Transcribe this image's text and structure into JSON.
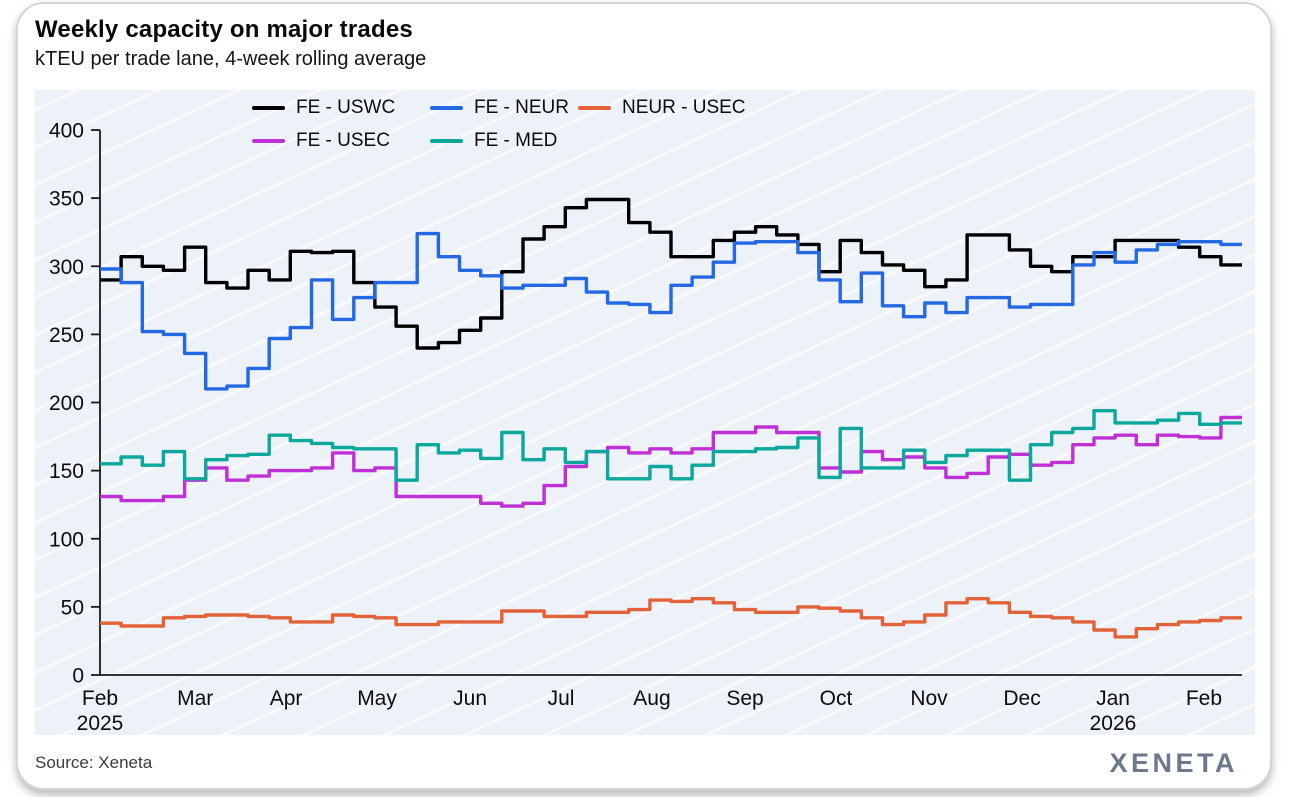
{
  "header": {
    "title": "Weekly capacity on major trades",
    "subtitle": "kTEU per trade lane, 4-week rolling average"
  },
  "footer": {
    "source": "Source: Xeneta",
    "brand": "XENETA"
  },
  "colors": {
    "fe_uswc": "#000000",
    "fe_neur": "#2569e2",
    "neur_usec": "#e2633a",
    "fe_usec": "#bf30d5",
    "fe_med": "#0ba89b",
    "panel_background": "#edf1f8",
    "axis": "#1a1a1a",
    "brand_gray": "#6e788b"
  },
  "chart_data": {
    "type": "line",
    "line_style": "step-weekly",
    "title": "Weekly capacity on major trades",
    "subtitle": "kTEU per trade lane, 4-week rolling average",
    "xlabel": "",
    "ylabel": "kTEU",
    "ylim": [
      0,
      400
    ],
    "ytick_step": 50,
    "yticks": [
      0,
      50,
      100,
      150,
      200,
      250,
      300,
      350,
      400
    ],
    "grid": "off",
    "legend_position": "top-inside-two-rows",
    "x_unit": "week-index-from-feb-2025",
    "x_ticks": [
      {
        "label": "Feb",
        "sublabel": "2025",
        "week": 0
      },
      {
        "label": "Mar",
        "week": 4.5
      },
      {
        "label": "Apr",
        "week": 8.8
      },
      {
        "label": "May",
        "week": 13.1
      },
      {
        "label": "Jun",
        "week": 17.5
      },
      {
        "label": "Jul",
        "week": 21.8
      },
      {
        "label": "Aug",
        "week": 26.1
      },
      {
        "label": "Sep",
        "week": 30.5
      },
      {
        "label": "Oct",
        "week": 34.8
      },
      {
        "label": "Nov",
        "week": 39.2
      },
      {
        "label": "Dec",
        "week": 43.6
      },
      {
        "label": "Jan",
        "sublabel": "2026",
        "week": 47.9
      },
      {
        "label": "Feb",
        "week": 52.2
      }
    ],
    "series": [
      {
        "name": "FE - USWC",
        "color": "#000000",
        "values": [
          290,
          307,
          300,
          297,
          314,
          288,
          284,
          297,
          290,
          311,
          310,
          311,
          288,
          270,
          256,
          240,
          244,
          253,
          262,
          296,
          320,
          329,
          343,
          349,
          349,
          332,
          325,
          307,
          307,
          319,
          325,
          329,
          323,
          316,
          296,
          319,
          310,
          301,
          297,
          285,
          290,
          323,
          323,
          312,
          300,
          296,
          307,
          307,
          319,
          319,
          319,
          314,
          307,
          301
        ]
      },
      {
        "name": "FE - NEUR",
        "color": "#2569e2",
        "values": [
          298,
          288,
          252,
          250,
          236,
          210,
          212,
          225,
          247,
          255,
          290,
          261,
          277,
          288,
          288,
          324,
          307,
          297,
          293,
          284,
          286,
          286,
          291,
          281,
          273,
          272,
          266,
          286,
          292,
          303,
          317,
          318,
          318,
          310,
          290,
          274,
          295,
          271,
          263,
          273,
          266,
          277,
          277,
          270,
          272,
          272,
          301,
          310,
          303,
          312,
          316,
          318,
          318,
          316
        ]
      },
      {
        "name": "NEUR - USEC",
        "color": "#e2633a",
        "values": [
          38,
          36,
          36,
          42,
          43,
          44,
          44,
          43,
          42,
          39,
          39,
          44,
          43,
          42,
          37,
          37,
          39,
          39,
          39,
          47,
          47,
          43,
          43,
          46,
          46,
          48,
          55,
          54,
          56,
          53,
          48,
          46,
          46,
          50,
          49,
          47,
          42,
          37,
          39,
          44,
          53,
          56,
          53,
          46,
          43,
          42,
          39,
          33,
          28,
          34,
          37,
          39,
          40,
          42
        ]
      },
      {
        "name": "FE - USEC",
        "color": "#bf30d5",
        "values": [
          131,
          128,
          128,
          131,
          143,
          152,
          143,
          146,
          150,
          150,
          152,
          163,
          150,
          152,
          131,
          131,
          131,
          131,
          126,
          124,
          126,
          139,
          153,
          164,
          167,
          163,
          166,
          163,
          166,
          178,
          178,
          182,
          178,
          178,
          152,
          149,
          164,
          158,
          160,
          152,
          145,
          148,
          160,
          162,
          154,
          156,
          169,
          174,
          176,
          169,
          176,
          175,
          174,
          189
        ]
      },
      {
        "name": "FE - MED",
        "color": "#0ba89b",
        "values": [
          155,
          160,
          154,
          164,
          144,
          158,
          161,
          162,
          176,
          172,
          170,
          167,
          166,
          166,
          143,
          169,
          163,
          165,
          159,
          178,
          158,
          166,
          156,
          164,
          144,
          144,
          153,
          144,
          154,
          164,
          164,
          166,
          167,
          174,
          145,
          181,
          152,
          152,
          165,
          156,
          161,
          165,
          165,
          143,
          169,
          178,
          181,
          194,
          185,
          185,
          187,
          192,
          184,
          185
        ]
      }
    ]
  }
}
